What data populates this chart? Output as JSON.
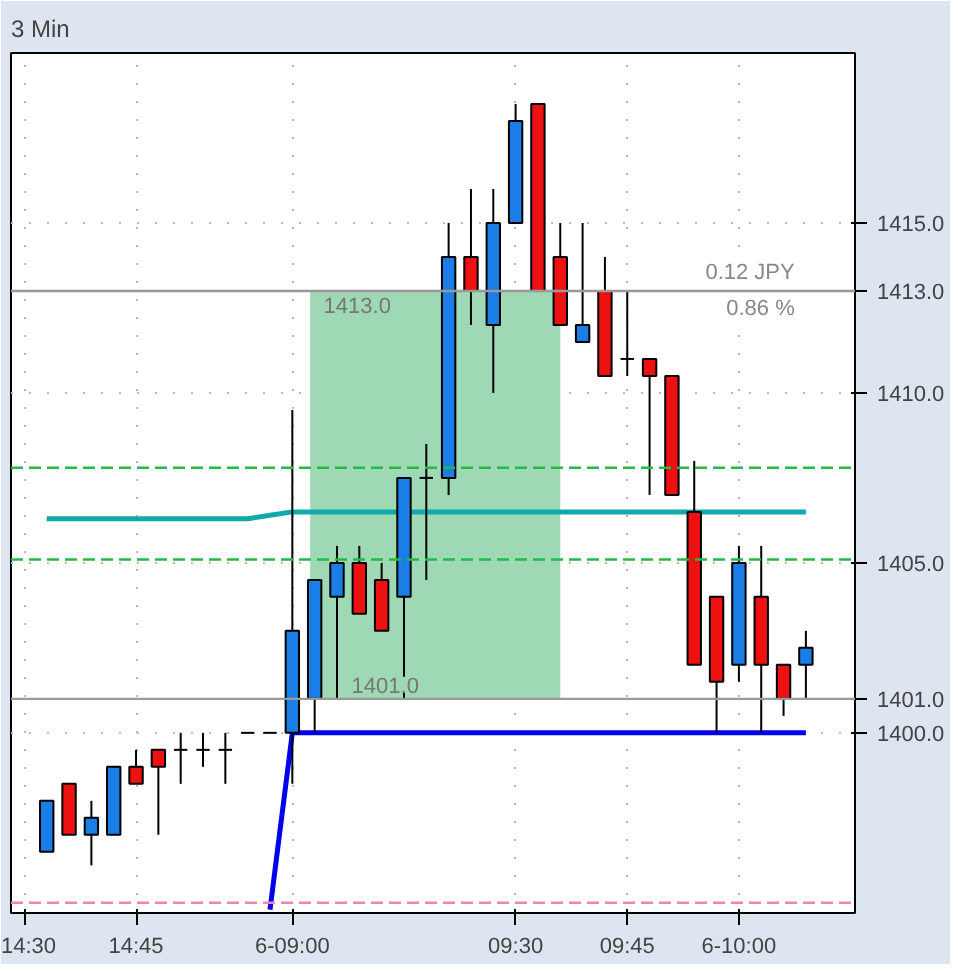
{
  "chart_data": {
    "type": "candlestick",
    "title": "3 Min",
    "categories": [
      "14:30",
      null,
      null,
      null,
      null,
      "14:45",
      null,
      null,
      null,
      null,
      null,
      null,
      "6-09:00",
      null,
      null,
      null,
      null,
      null,
      null,
      null,
      null,
      null,
      "09:30",
      null,
      null,
      null,
      null,
      "09:45",
      null,
      null,
      null,
      null,
      "6-10:00",
      null,
      null,
      null
    ],
    "ohlc": [
      null,
      [
        1396.5,
        1398,
        1396.5,
        1398
      ],
      [
        1398.5,
        1398.5,
        1397,
        1397
      ],
      [
        1397,
        1398,
        1396.1,
        1397.5
      ],
      [
        1397,
        1399,
        1397,
        1399
      ],
      [
        1399,
        1399.5,
        1398.5,
        1398.5
      ],
      [
        1399.5,
        1399.5,
        1397,
        1399
      ],
      [
        1399.5,
        1400,
        1398.5,
        1399.5
      ],
      [
        1399.5,
        1400,
        1399,
        1399.5
      ],
      [
        1399.5,
        1400,
        1398.5,
        1399.5
      ],
      [
        1400,
        1400,
        1400,
        1400
      ],
      [
        1400,
        1400,
        1400,
        1400
      ],
      [
        1400,
        1409.5,
        1398.5,
        1403
      ],
      [
        1401,
        1404.5,
        1400,
        1404.5
      ],
      [
        1404,
        1405.5,
        1401,
        1405
      ],
      [
        1405,
        1405.5,
        1403.5,
        1403.5
      ],
      [
        1404.5,
        1405,
        1403,
        1403
      ],
      [
        1404,
        1407.5,
        1401,
        1407.5
      ],
      [
        1407.5,
        1408.5,
        1404.5,
        1407.5
      ],
      [
        1407.5,
        1415,
        1407,
        1414
      ],
      [
        1414,
        1416,
        1412,
        1413
      ],
      [
        1412,
        1416,
        1410,
        1415
      ],
      [
        1415,
        1418.5,
        1415,
        1418
      ],
      [
        1418.5,
        1418.5,
        1413,
        1413
      ],
      [
        1414,
        1415,
        1412,
        1412
      ],
      [
        1411.5,
        1415,
        1411.5,
        1412
      ],
      [
        1413,
        1414,
        1410.5,
        1410.5
      ],
      [
        1411,
        1413,
        1410.5,
        1411
      ],
      [
        1411,
        1411,
        1407,
        1410.5
      ],
      [
        1410.5,
        1410.5,
        1407,
        1407
      ],
      [
        1406.5,
        1408,
        1402,
        1402
      ],
      [
        1404,
        1404,
        1400,
        1401.5
      ],
      [
        1402,
        1405.5,
        1401.5,
        1405
      ],
      [
        1404,
        1405.5,
        1400,
        1402
      ],
      [
        1402,
        1402,
        1400.5,
        1401
      ],
      [
        1402,
        1403,
        1401,
        1402.5
      ]
    ],
    "colors": [
      null,
      "#1a7ee6",
      "#ee1111",
      "#1a7ee6",
      "#1a7ee6",
      "#ee1111",
      "#ee1111",
      "#000000",
      "#000000",
      "#000000",
      "#000000",
      "#000000",
      "#1a7ee6",
      "#1a7ee6",
      "#1a7ee6",
      "#ee1111",
      "#ee1111",
      "#1a7ee6",
      "#000000",
      "#1a7ee6",
      "#ee1111",
      "#1a7ee6",
      "#1a7ee6",
      "#ee1111",
      "#ee1111",
      "#1a7ee6",
      "#ee1111",
      "#000000",
      "#ee1111",
      "#ee1111",
      "#ee1111",
      "#ee1111",
      "#1a7ee6",
      "#ee1111",
      "#ee1111",
      "#1a7ee6"
    ],
    "series": [
      {
        "type": "line",
        "color": "#0000ee",
        "values": [
          null,
          null,
          null,
          null,
          null,
          null,
          null,
          null,
          null,
          null,
          null,
          1394.8,
          1400,
          1400,
          1400,
          1400,
          1400,
          1400,
          1400,
          1400,
          1400,
          1400,
          1400,
          1400,
          1400,
          1400,
          1400,
          1400,
          1400,
          1400,
          1400,
          1400,
          1400,
          1400,
          1400,
          1400
        ]
      },
      {
        "type": "line",
        "color": "#11aaaa",
        "values": [
          null,
          1406.3,
          1406.3,
          1406.3,
          1406.3,
          1406.3,
          1406.3,
          1406.3,
          1406.3,
          1406.3,
          1406.3,
          1406.4,
          1406.5,
          1406.5,
          1406.5,
          1406.5,
          1406.5,
          1406.5,
          1406.5,
          1406.5,
          1406.5,
          1406.5,
          1406.5,
          1406.5,
          1406.5,
          1406.5,
          1406.5,
          1406.5,
          1406.5,
          1406.5,
          1406.5,
          1406.5,
          1406.5,
          1406.5,
          1406.5,
          1406.5
        ]
      }
    ],
    "ylim": [
      1394.7,
      1420
    ],
    "yticks": [
      {
        "value": 1400,
        "label": "1400.0"
      },
      {
        "value": 1405,
        "label": "1405.0"
      },
      {
        "value": 1410,
        "label": "1410.0"
      },
      {
        "value": 1415,
        "label": "1415.0"
      }
    ],
    "ref_lines": [
      {
        "axis": "y",
        "value": 1413,
        "label": "1413.0",
        "color": "#999999"
      },
      {
        "axis": "y",
        "value": 1401,
        "label": "1401.0",
        "color": "#999999"
      },
      {
        "axis": "y",
        "value": 1407.8,
        "label": null,
        "color": "#22bb44",
        "line_style": "dashed"
      },
      {
        "axis": "y",
        "value": 1405.1,
        "label": null,
        "color": "#22bb44",
        "line_style": "dashed"
      },
      {
        "axis": "y",
        "value": 1395,
        "label": null,
        "color": "#ee88aa",
        "line_style": "dashed"
      }
    ],
    "bands": [
      {
        "axis": "y",
        "from": 1401,
        "to": 1413,
        "label": null,
        "color": "#9fd8b4"
      }
    ],
    "annotations": [
      {
        "text": "1413.0",
        "y": 1413
      },
      {
        "text": "1401.0",
        "y": 1401
      },
      {
        "text": "0.12 JPY",
        "y": 1413
      },
      {
        "text": "0.86 %",
        "y": 1413
      }
    ],
    "grid": true
  }
}
